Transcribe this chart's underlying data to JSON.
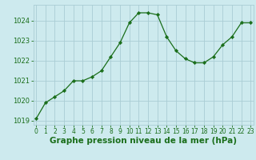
{
  "x": [
    0,
    1,
    2,
    3,
    4,
    5,
    6,
    7,
    8,
    9,
    10,
    11,
    12,
    13,
    14,
    15,
    16,
    17,
    18,
    19,
    20,
    21,
    22,
    23
  ],
  "y": [
    1019.1,
    1019.9,
    1020.2,
    1020.5,
    1021.0,
    1021.0,
    1021.2,
    1021.5,
    1022.2,
    1022.9,
    1023.9,
    1024.4,
    1024.4,
    1024.3,
    1023.2,
    1022.5,
    1022.1,
    1021.9,
    1021.9,
    1022.2,
    1022.8,
    1023.2,
    1023.9,
    1023.9
  ],
  "line_color": "#1a6e1a",
  "marker": "D",
  "marker_size": 2.2,
  "bg_color": "#cdeaee",
  "grid_color": "#aacdd4",
  "xlabel": "Graphe pression niveau de la mer (hPa)",
  "xlabel_fontsize": 7.5,
  "xlabel_color": "#1a6e1a",
  "xlabel_fontweight": "bold",
  "ylim": [
    1018.8,
    1024.8
  ],
  "yticks": [
    1019,
    1020,
    1021,
    1022,
    1023,
    1024
  ],
  "xtick_labels": [
    "0",
    "1",
    "2",
    "3",
    "4",
    "5",
    "6",
    "7",
    "8",
    "9",
    "10",
    "11",
    "12",
    "13",
    "14",
    "15",
    "16",
    "17",
    "18",
    "19",
    "20",
    "21",
    "22",
    "23"
  ],
  "tick_fontsize": 5.5,
  "tick_color": "#1a6e1a",
  "ytick_fontsize": 6.0
}
